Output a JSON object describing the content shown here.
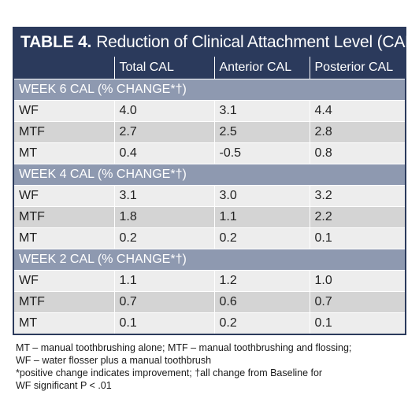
{
  "title": {
    "lead": "TABLE 4.",
    "rest": "Reduction of Clinical Attachment Level (CAL)"
  },
  "columns": [
    "",
    "Total CAL",
    "Anterior CAL",
    "Posterior CAL"
  ],
  "sections": [
    {
      "label": "WEEK 6 CAL (% CHANGE*†)",
      "rows": [
        [
          "WF",
          "4.0",
          "3.1",
          "4.4"
        ],
        [
          "MTF",
          "2.7",
          "2.5",
          "2.8"
        ],
        [
          "MT",
          "0.4",
          "-0.5",
          "0.8"
        ]
      ]
    },
    {
      "label": "WEEK 4 CAL (% CHANGE*†)",
      "rows": [
        [
          "WF",
          "3.1",
          "3.0",
          "3.2"
        ],
        [
          "MTF",
          "1.8",
          "1.1",
          "2.2"
        ],
        [
          "MT",
          "0.2",
          "0.2",
          "0.1"
        ]
      ]
    },
    {
      "label": "WEEK 2 CAL (% CHANGE*†)",
      "rows": [
        [
          "WF",
          "1.1",
          "1.2",
          "1.0"
        ],
        [
          "MTF",
          "0.7",
          "0.6",
          "0.7"
        ],
        [
          "MT",
          "0.1",
          "0.2",
          "0.1"
        ]
      ]
    }
  ],
  "footnotes": [
    "MT – manual toothbrushing alone; MTF – manual toothbrushing and flossing;",
    "WF – water flosser plus a manual toothbrush",
    "*positive change indicates improvement; †all change from Baseline for",
    "WF significant P < .01"
  ],
  "colors": {
    "header": "#2b3a5c",
    "section": "#8e99b0",
    "row_light": "#ededed",
    "row_dark": "#d4d4d4"
  }
}
